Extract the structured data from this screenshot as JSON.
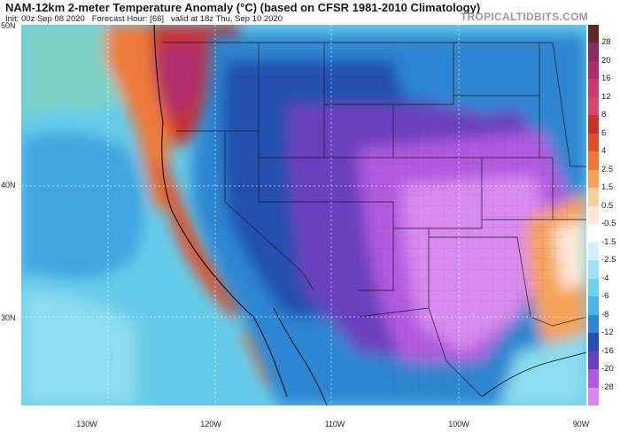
{
  "header": {
    "title": "NAM-12km 2-meter Temperature Anomaly (°C) (based on CFSR 1981-2010 Climatology)",
    "init": "Init: 00z Sep 08 2020",
    "forecast_hour": "Forecast Hour: [66]",
    "valid": "valid at 18z Thu, Sep 10 2020",
    "brand": "TROPICALTIDBITS.COM"
  },
  "axes": {
    "lat_labels": [
      "50N",
      "40N",
      "30N"
    ],
    "lon_labels": [
      "130W",
      "120W",
      "110W",
      "100W",
      "90W"
    ]
  },
  "colorbar": {
    "labels": [
      "28",
      "20",
      "16",
      "12",
      "8",
      "6",
      "4",
      "2.5",
      "1.5",
      "0.5",
      "-0.5",
      "-1.5",
      "-2.5",
      "-4",
      "-6",
      "-8",
      "-12",
      "-16",
      "-20",
      "-28"
    ],
    "colors": [
      "#5c2a20",
      "#8a2c5e",
      "#b02d6c",
      "#cc3a73",
      "#d4486a",
      "#c8302c",
      "#e0502c",
      "#ed7a3a",
      "#f5a35a",
      "#f8cf9c",
      "#fbe8d6",
      "#ffffff",
      "#d2f0fa",
      "#a2e2f6",
      "#6fd0ee",
      "#49b6e6",
      "#2f86d2",
      "#2350b0",
      "#6a3fc0",
      "#b05ae0",
      "#d98aee"
    ]
  },
  "map": {
    "region": "Western and central United States",
    "pattern": "Strong cold anomaly (purple/blue) over Rockies and Plains; warm anomaly (red/orange) along Pacific Northwest and California coast"
  }
}
